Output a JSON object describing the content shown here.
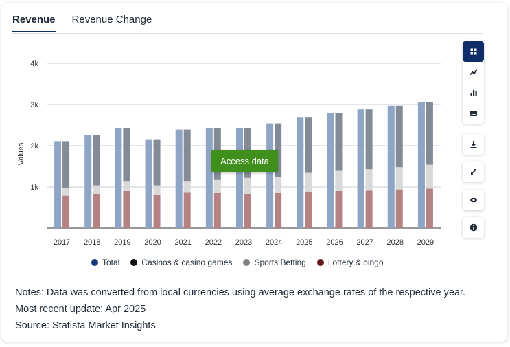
{
  "tabs": [
    {
      "label": "Revenue",
      "active": true
    },
    {
      "label": "Revenue Change",
      "active": false
    }
  ],
  "access_button": "Access data",
  "legend": [
    {
      "label": "Total",
      "color": "#153a7a"
    },
    {
      "label": "Casinos & casino games",
      "color": "#111111"
    },
    {
      "label": "Sports Betting",
      "color": "#808080"
    },
    {
      "label": "Lottery & bingo",
      "color": "#6b1a1a"
    }
  ],
  "notes": {
    "line1": "Notes: Data was converted from local currencies using average exchange rates of the respective year.",
    "line2": "Most recent update: Apr 2025",
    "line3": "Source: Statista Market Insights"
  },
  "sidebar": {
    "group1": [
      "grid-icon",
      "trend-icon",
      "bar-chart-icon",
      "table-icon"
    ],
    "group2": [
      "download-icon",
      "expand-icon",
      "eye-icon",
      "info-icon"
    ]
  },
  "chart_data": {
    "type": "bar",
    "ylabel": "Values",
    "y_ticks": [
      "1k",
      "2k",
      "3k",
      "4k"
    ],
    "ylim": [
      0,
      4000
    ],
    "grid": true,
    "categories": [
      "2017",
      "2018",
      "2019",
      "2020",
      "2021",
      "2022",
      "2023",
      "2024",
      "2025",
      "2026",
      "2027",
      "2028",
      "2029"
    ],
    "series": [
      {
        "name": "Total",
        "color": "#8fa5c6",
        "values": [
          2110,
          2250,
          2420,
          2140,
          2390,
          2430,
          2430,
          2540,
          2680,
          2800,
          2880,
          2970,
          3050
        ]
      },
      {
        "name": "Lottery & bingo",
        "color": "#b58284",
        "values": [
          790,
          830,
          900,
          800,
          860,
          850,
          830,
          850,
          880,
          900,
          910,
          940,
          960
        ]
      },
      {
        "name": "Casinos & casino games",
        "color": "#d9d9d9",
        "values": [
          180,
          210,
          230,
          240,
          270,
          320,
          390,
          400,
          460,
          490,
          520,
          540,
          580
        ]
      },
      {
        "name": "Sports Betting",
        "color": "#828b96",
        "values": [
          1140,
          1210,
          1290,
          1100,
          1260,
          1260,
          1210,
          1290,
          1340,
          1410,
          1450,
          1490,
          1510
        ]
      }
    ]
  }
}
